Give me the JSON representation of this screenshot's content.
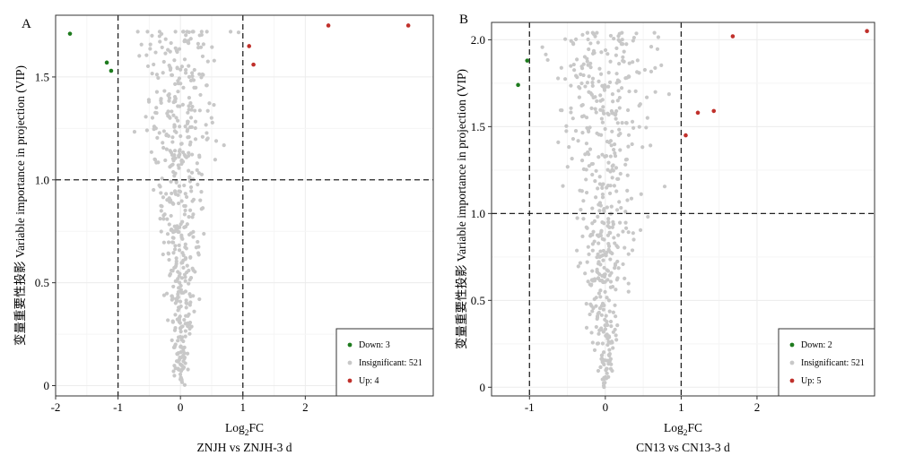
{
  "chart_data": [
    {
      "type": "scatter",
      "panel_label": "A",
      "title": "ZNJH vs ZNJH-3 d",
      "xlabel_base": "Log",
      "xlabel_sub": "2",
      "xlabel_suffix": "FC",
      "ylabel": "变量重要性投影 Variable importance in projection (VIP)",
      "xlim": [
        -2.0,
        4.05
      ],
      "ylim": [
        -0.05,
        1.8
      ],
      "xticks": [
        -2,
        -1,
        0,
        1,
        2
      ],
      "xtick_labels": [
        "-2",
        "-1",
        "0",
        "1",
        "2"
      ],
      "yticks": [
        0,
        0.5,
        1.0,
        1.5
      ],
      "ytick_labels": [
        "0",
        "0.5",
        "1.0",
        "1.5"
      ],
      "vlines": [
        -1,
        1
      ],
      "hline": 1,
      "grid": true,
      "legend_position": "bottom-right",
      "legend": [
        {
          "label": "Down: 3",
          "color": "#1e7b1e"
        },
        {
          "label": "Insignificant: 521",
          "color": "#c8c8c8"
        },
        {
          "label": "Up: 4",
          "color": "#c0302b"
        }
      ],
      "series": [
        {
          "name": "Down",
          "color": "#1e7b1e",
          "points": [
            [
              -1.77,
              1.71
            ],
            [
              -1.18,
              1.57
            ],
            [
              -1.11,
              1.53
            ]
          ]
        },
        {
          "name": "Up",
          "color": "#c0302b",
          "points": [
            [
              1.1,
              1.65
            ],
            [
              1.17,
              1.56
            ],
            [
              2.37,
              1.75
            ],
            [
              3.65,
              1.75
            ]
          ]
        },
        {
          "name": "Insignificant",
          "color": "#c8c8c8",
          "count": 521
        }
      ]
    },
    {
      "type": "scatter",
      "panel_label": "B",
      "title": "CN13 vs CN13-3 d",
      "xlabel_base": "Log",
      "xlabel_sub": "2",
      "xlabel_suffix": "FC",
      "ylabel": "变量重要性投影 Variable importance in projection (VIP)",
      "xlim": [
        -1.5,
        3.55
      ],
      "ylim": [
        -0.05,
        2.1
      ],
      "xticks": [
        -1,
        0,
        1,
        2
      ],
      "xtick_labels": [
        "-1",
        "0",
        "1",
        "2"
      ],
      "yticks": [
        0,
        0.5,
        1.0,
        1.5,
        2.0
      ],
      "ytick_labels": [
        "0",
        "0.5",
        "1.0",
        "1.5",
        "2.0"
      ],
      "vlines": [
        -1,
        1
      ],
      "hline": 1,
      "grid": true,
      "legend_position": "bottom-right",
      "legend": [
        {
          "label": "Down: 2",
          "color": "#1e7b1e"
        },
        {
          "label": "Insignificant: 521",
          "color": "#c8c8c8"
        },
        {
          "label": "Up: 5",
          "color": "#c0302b"
        }
      ],
      "series": [
        {
          "name": "Down",
          "color": "#1e7b1e",
          "points": [
            [
              -1.03,
              1.88
            ],
            [
              -1.15,
              1.74
            ]
          ]
        },
        {
          "name": "Up",
          "color": "#c0302b",
          "points": [
            [
              1.06,
              1.45
            ],
            [
              1.22,
              1.58
            ],
            [
              1.43,
              1.59
            ],
            [
              1.68,
              2.02
            ],
            [
              3.45,
              2.05
            ]
          ]
        },
        {
          "name": "Insignificant",
          "color": "#c8c8c8",
          "count": 521
        }
      ]
    }
  ]
}
